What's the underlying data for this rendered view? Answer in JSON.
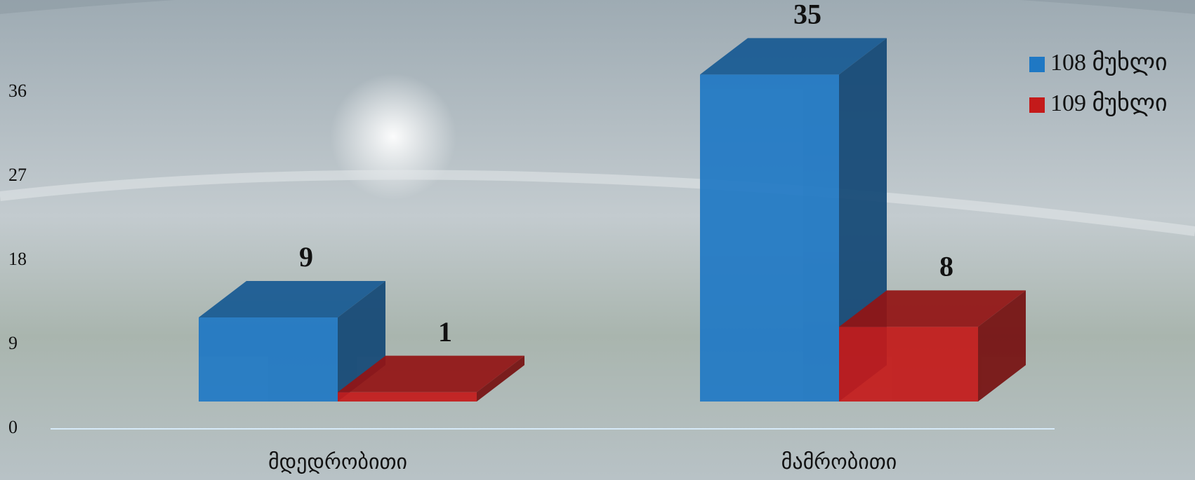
{
  "chart_data": {
    "type": "bar3d",
    "categories": [
      "მდედრობითი",
      "მამრობითი"
    ],
    "series": [
      {
        "name": "108 მუხლი",
        "color": "#1f78c4",
        "values": [
          9,
          35
        ]
      },
      {
        "name": "109 მუხლი",
        "color": "#c41a1a",
        "values": [
          1,
          8
        ]
      }
    ],
    "ylim": [
      0,
      36
    ],
    "yticks": [
      0,
      9,
      18,
      27,
      36
    ],
    "legend": "top-right"
  }
}
